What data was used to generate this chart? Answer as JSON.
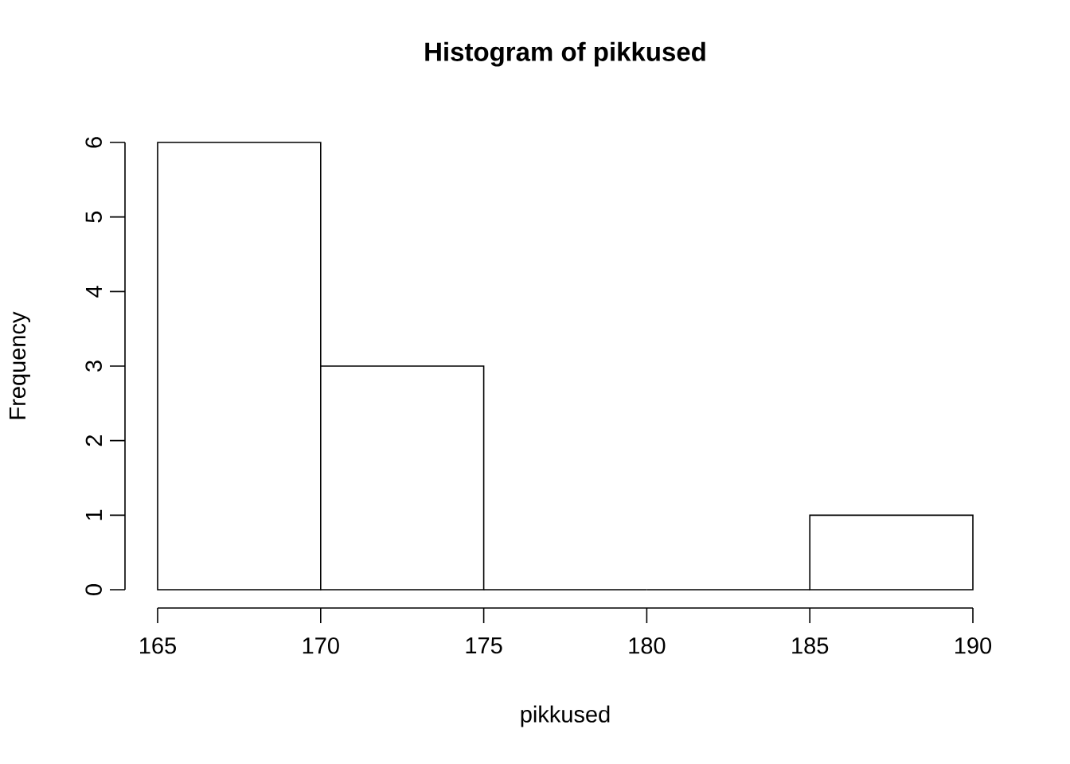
{
  "chart_data": {
    "type": "histogram",
    "title": "Histogram of pikkused",
    "xlabel": "pikkused",
    "ylabel": "Frequency",
    "bins": [
      165,
      170,
      175,
      180,
      185,
      190
    ],
    "values": [
      6,
      3,
      0,
      0,
      1
    ],
    "xlim": [
      165,
      190
    ],
    "ylim": [
      0,
      6
    ],
    "xticks": [
      165,
      170,
      175,
      180,
      185,
      190
    ],
    "yticks": [
      0,
      1,
      2,
      3,
      4,
      5,
      6
    ]
  }
}
